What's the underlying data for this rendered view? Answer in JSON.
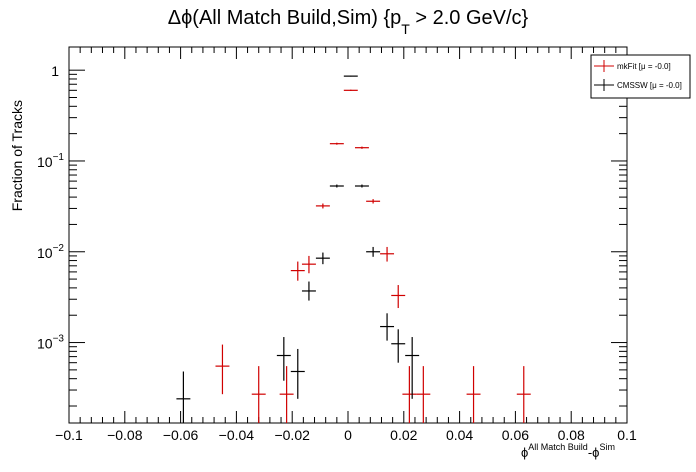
{
  "chart_data": {
    "type": "scatter",
    "title": {
      "main": "Δϕ(All Match Build,Sim) {p",
      "sub": "T",
      "tail": " > 2.0 GeV/c}"
    },
    "xlabel": {
      "a": "ϕ",
      "a_sup": "All Match Build",
      "b": "-ϕ",
      "b_sup": "Sim"
    },
    "ylabel": "Fraction of Tracks",
    "xlim": [
      -0.1,
      0.1
    ],
    "ylim": [
      0.00013,
      1.8
    ],
    "yscale": "log",
    "bin_width": 0.005,
    "x_ticks": [
      -0.1,
      -0.08,
      -0.06,
      -0.04,
      -0.02,
      0,
      0.02,
      0.04,
      0.06,
      0.08,
      0.1
    ],
    "x_tick_labels": [
      "−0.1",
      "−0.08",
      "−0.06",
      "−0.04",
      "−0.02",
      "0",
      "0.02",
      "0.04",
      "0.06",
      "0.08",
      "0.1"
    ],
    "y_ticks": [
      {
        "value": 1,
        "base": "1",
        "exp": ""
      },
      {
        "value": 0.1,
        "base": "10",
        "exp": "−1"
      },
      {
        "value": 0.01,
        "base": "10",
        "exp": "−2"
      },
      {
        "value": 0.001,
        "base": "10",
        "exp": "−3"
      }
    ],
    "legend_position": "top-right",
    "series": [
      {
        "name": "mkFit",
        "legend_label": "mkFit  [μ = -0.0]",
        "color": "#d00000",
        "points": [
          {
            "x": -0.045,
            "y": 0.00055,
            "ylo": 0.00027,
            "yhi": 0.00095
          },
          {
            "x": -0.032,
            "y": 0.00027,
            "ylo": 0.00013,
            "yhi": 0.00055
          },
          {
            "x": -0.022,
            "y": 0.00027,
            "ylo": 0.00013,
            "yhi": 0.00055
          },
          {
            "x": -0.018,
            "y": 0.0062,
            "ylo": 0.0048,
            "yhi": 0.0078
          },
          {
            "x": -0.014,
            "y": 0.0073,
            "ylo": 0.0058,
            "yhi": 0.009
          },
          {
            "x": -0.009,
            "y": 0.032,
            "ylo": 0.03,
            "yhi": 0.034
          },
          {
            "x": -0.004,
            "y": 0.155,
            "ylo": 0.151,
            "yhi": 0.159
          },
          {
            "x": 0.001,
            "y": 0.6,
            "ylo": 0.59,
            "yhi": 0.61
          },
          {
            "x": 0.005,
            "y": 0.14,
            "ylo": 0.136,
            "yhi": 0.144
          },
          {
            "x": 0.009,
            "y": 0.036,
            "ylo": 0.034,
            "yhi": 0.038
          },
          {
            "x": 0.014,
            "y": 0.0095,
            "ylo": 0.0078,
            "yhi": 0.0113
          },
          {
            "x": 0.018,
            "y": 0.0033,
            "ylo": 0.0024,
            "yhi": 0.0043
          },
          {
            "x": 0.022,
            "y": 0.00027,
            "ylo": 0.00013,
            "yhi": 0.00055
          },
          {
            "x": 0.027,
            "y": 0.00027,
            "ylo": 0.00013,
            "yhi": 0.00055
          },
          {
            "x": 0.045,
            "y": 0.00027,
            "ylo": 0.00013,
            "yhi": 0.00055
          },
          {
            "x": 0.063,
            "y": 0.00027,
            "ylo": 0.00013,
            "yhi": 0.00055
          }
        ]
      },
      {
        "name": "CMSSW",
        "legend_label": "CMSSW  [μ = -0.0]",
        "color": "#000000",
        "points": [
          {
            "x": -0.059,
            "y": 0.00024,
            "ylo": 0.00013,
            "yhi": 0.00048
          },
          {
            "x": -0.023,
            "y": 0.00072,
            "ylo": 0.00038,
            "yhi": 0.00115
          },
          {
            "x": -0.018,
            "y": 0.00048,
            "ylo": 0.00024,
            "yhi": 0.00085
          },
          {
            "x": -0.014,
            "y": 0.0037,
            "ylo": 0.0029,
            "yhi": 0.0047
          },
          {
            "x": -0.009,
            "y": 0.0085,
            "ylo": 0.0073,
            "yhi": 0.0098
          },
          {
            "x": -0.004,
            "y": 0.053,
            "ylo": 0.051,
            "yhi": 0.055
          },
          {
            "x": 0.001,
            "y": 0.86,
            "ylo": 0.85,
            "yhi": 0.87
          },
          {
            "x": 0.005,
            "y": 0.053,
            "ylo": 0.051,
            "yhi": 0.055
          },
          {
            "x": 0.009,
            "y": 0.01,
            "ylo": 0.0088,
            "yhi": 0.0113
          },
          {
            "x": 0.014,
            "y": 0.0015,
            "ylo": 0.00105,
            "yhi": 0.0021
          },
          {
            "x": 0.018,
            "y": 0.00097,
            "ylo": 0.0006,
            "yhi": 0.0014
          },
          {
            "x": 0.023,
            "y": 0.00072,
            "ylo": 0.00024,
            "yhi": 0.00115
          }
        ]
      }
    ]
  }
}
